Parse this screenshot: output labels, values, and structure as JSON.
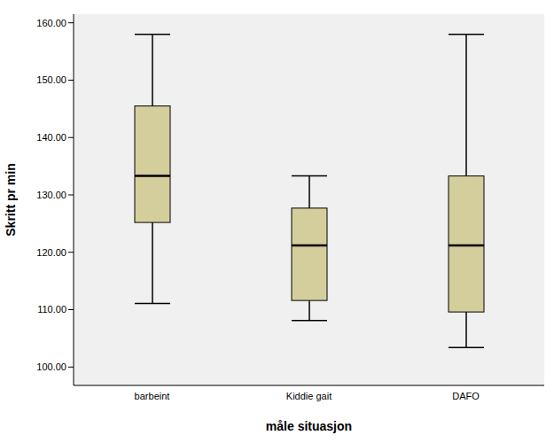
{
  "chart_data": {
    "type": "box",
    "x_label": "måle situasjon",
    "y_label": "Skritt pr min",
    "categories": [
      "barbeint",
      "Kiddie gait",
      "DAFO"
    ],
    "min": [
      111.1,
      108.1,
      103.4
    ],
    "q1": [
      125.2,
      111.6,
      109.6
    ],
    "median": [
      133.3,
      121.2,
      121.2
    ],
    "q3": [
      145.5,
      127.7,
      133.3
    ],
    "max": [
      158.0,
      133.3,
      158.0
    ],
    "color": "#d3ce9c",
    "ylim": [
      96.8,
      161.5
    ],
    "yticks": [
      {
        "value": 100,
        "label": "100.00"
      },
      {
        "value": 110,
        "label": "110.00"
      },
      {
        "value": 120,
        "label": "120.00"
      },
      {
        "value": 130,
        "label": "130.00"
      },
      {
        "value": 140,
        "label": "140.00"
      },
      {
        "value": 150,
        "label": "150.00"
      },
      {
        "value": 160,
        "label": "160.00"
      }
    ],
    "grid": false
  }
}
